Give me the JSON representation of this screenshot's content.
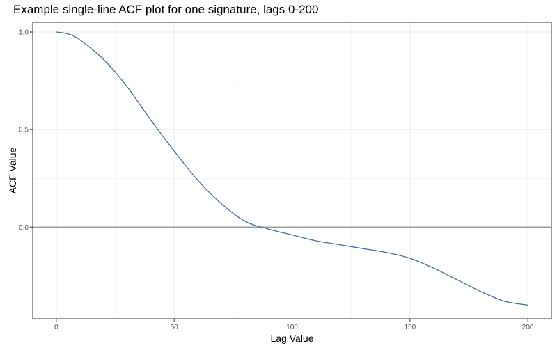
{
  "chart_data": {
    "type": "line",
    "title": "Example single-line ACF plot for one signature, lags 0-200",
    "xlabel": "Lag Value",
    "ylabel": "ACF Value",
    "xlim": [
      -10,
      210
    ],
    "ylim": [
      -0.47,
      1.05
    ],
    "x_ticks": [
      0,
      50,
      100,
      150,
      200
    ],
    "x_tick_labels": [
      "0",
      "50",
      "100",
      "150",
      "200"
    ],
    "y_ticks": [
      0.0,
      0.5,
      1.0
    ],
    "y_tick_labels": [
      "0.0",
      "0.5",
      "1.0"
    ],
    "grid": true,
    "reference_line_y": 0,
    "series_color": "#3a6fa3",
    "reference_line_color": "#8c8c8c",
    "x": [
      0,
      5,
      10,
      20,
      30,
      40,
      50,
      60,
      70,
      80,
      90,
      100,
      110,
      120,
      130,
      140,
      150,
      160,
      170,
      180,
      190,
      200
    ],
    "values": [
      1.0,
      0.99,
      0.96,
      0.86,
      0.72,
      0.55,
      0.39,
      0.24,
      0.12,
      0.03,
      -0.01,
      -0.04,
      -0.07,
      -0.09,
      -0.11,
      -0.13,
      -0.16,
      -0.21,
      -0.27,
      -0.33,
      -0.38,
      -0.4
    ]
  }
}
